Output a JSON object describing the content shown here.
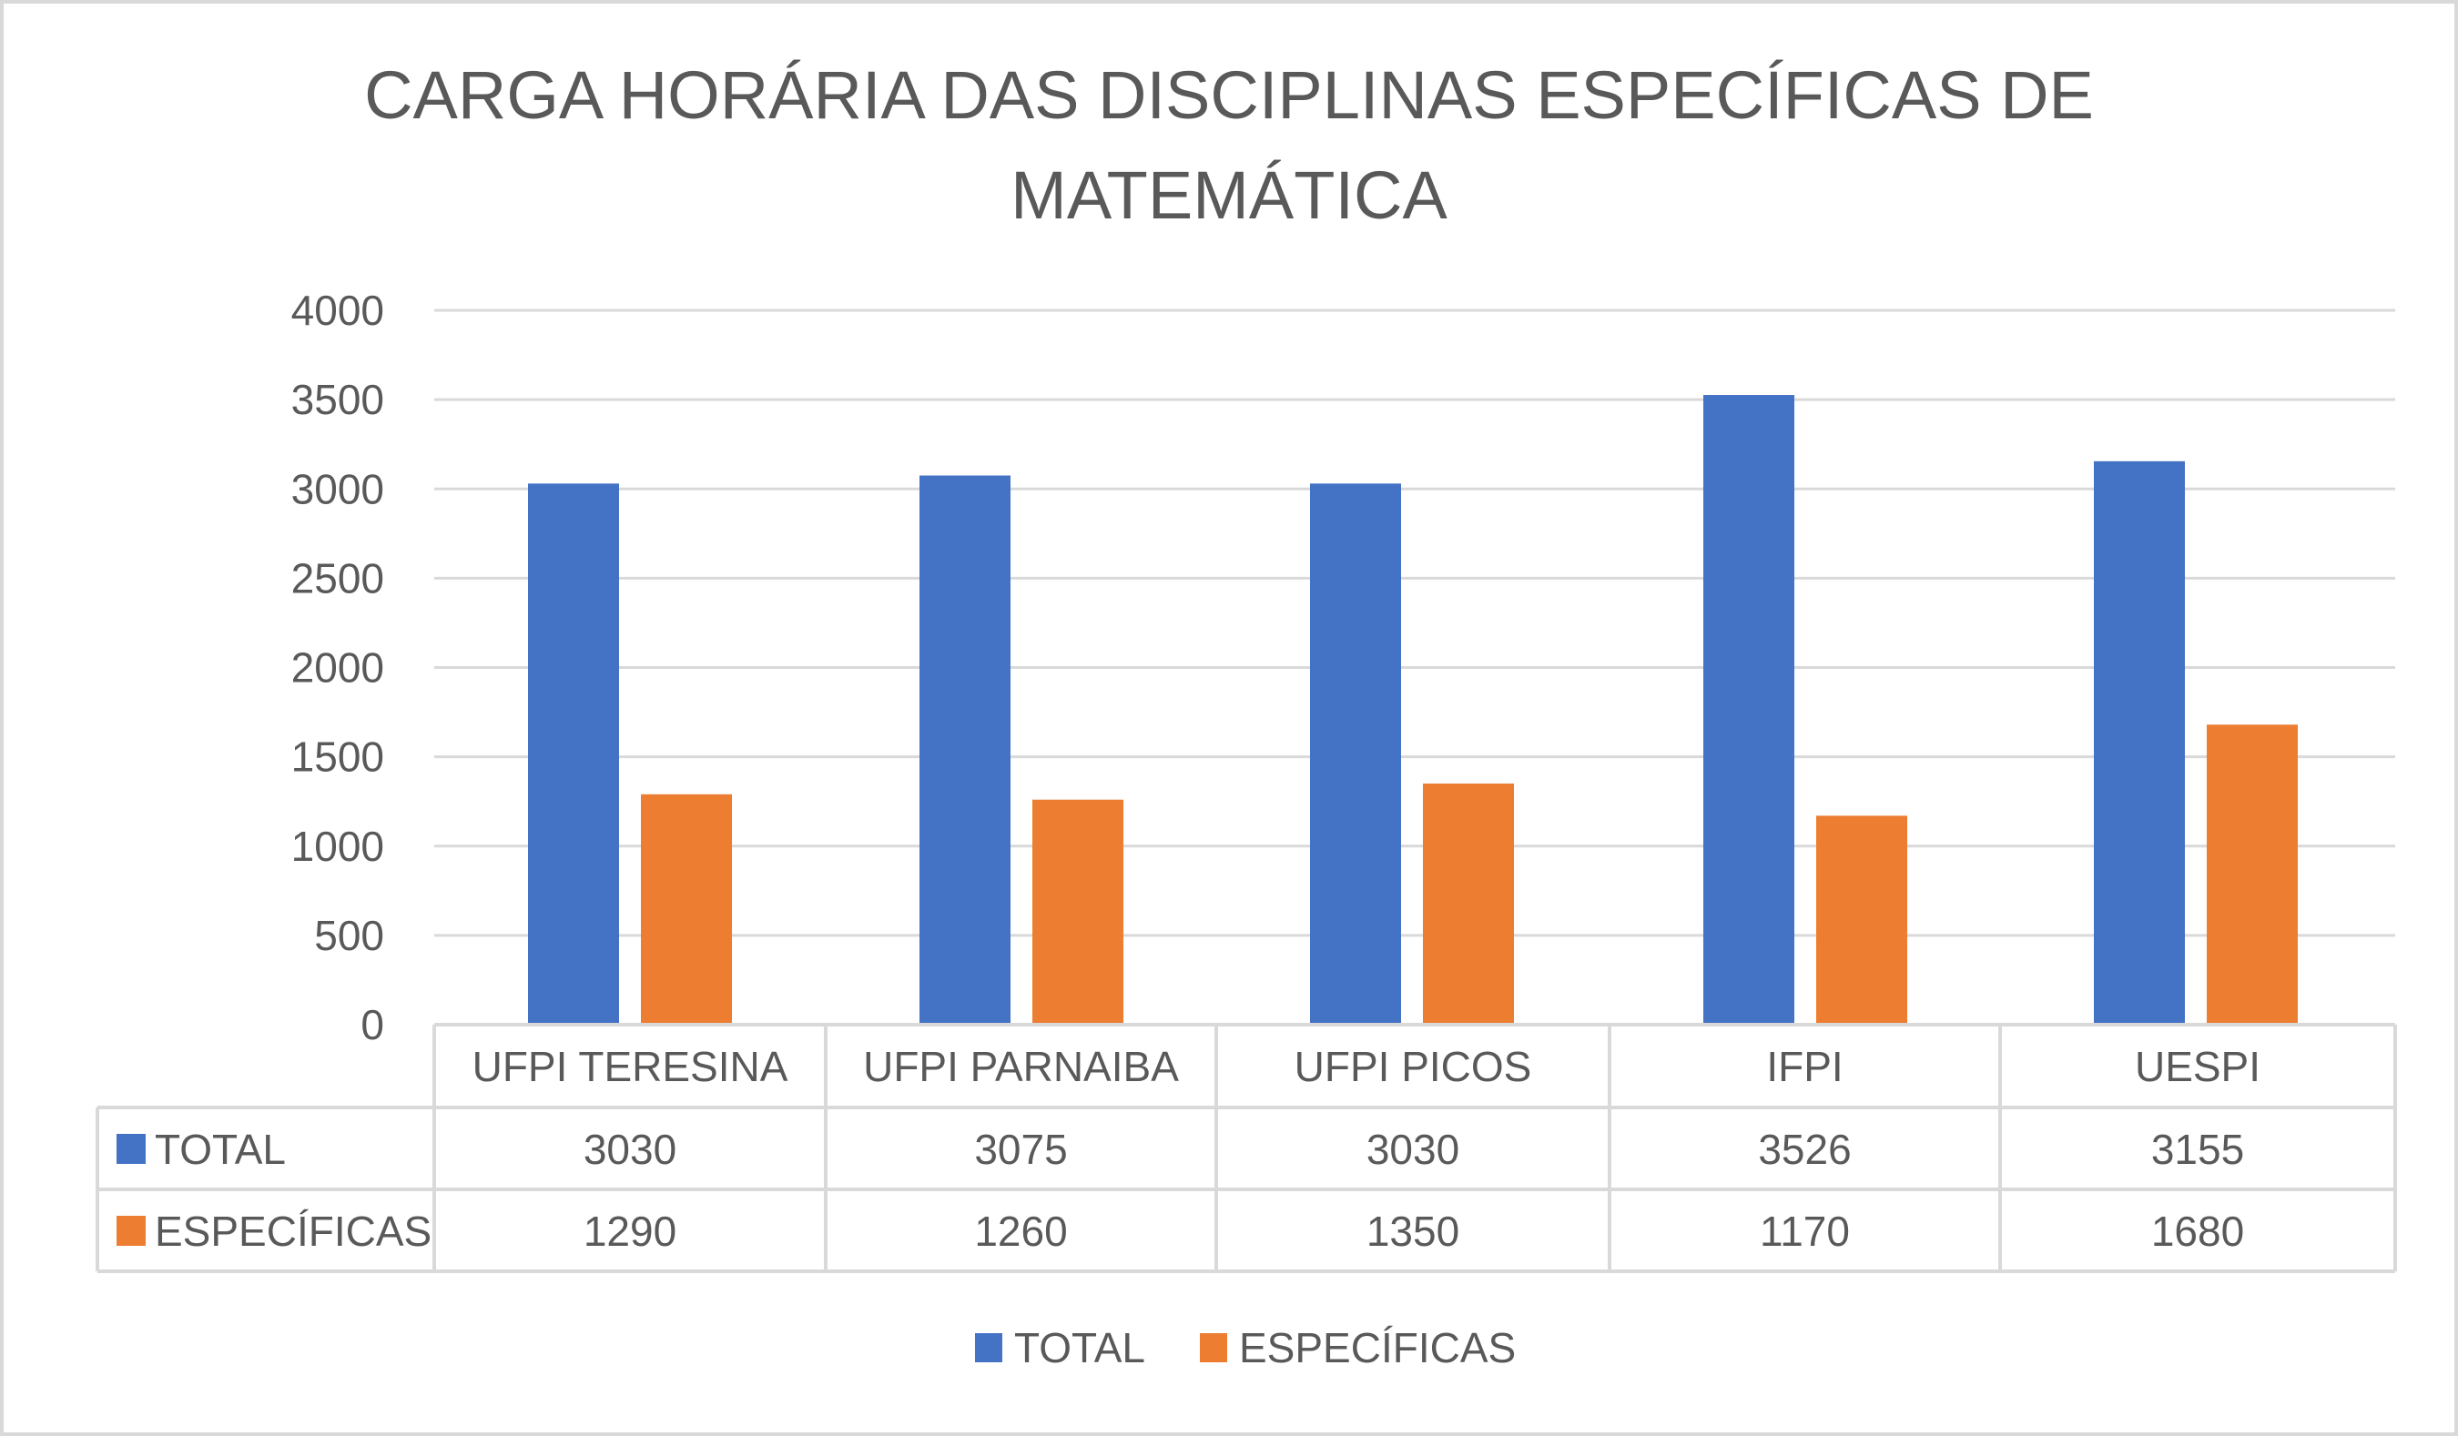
{
  "chart_data": {
    "type": "bar",
    "title_lines": [
      "CARGA HORÁRIA DAS DISCIPLINAS ESPECÍFICAS DE",
      "MATEMÁTICA"
    ],
    "categories": [
      "UFPI TERESINA",
      "UFPI PARNAIBA",
      "UFPI PICOS",
      "IFPI",
      "UESPI"
    ],
    "series": [
      {
        "name": "TOTAL",
        "color": "#4472C4",
        "values": [
          3030,
          3075,
          3030,
          3526,
          3155
        ]
      },
      {
        "name": "ESPECÍFICAS",
        "color": "#ED7D31",
        "values": [
          1290,
          1260,
          1350,
          1170,
          1680
        ]
      }
    ],
    "ylim": [
      0,
      4000
    ],
    "yticks": [
      "0",
      "500",
      "1000",
      "1500",
      "2000",
      "2500",
      "3000",
      "3500",
      "4000"
    ],
    "grid": true,
    "data_table": true,
    "legend_position": "bottom"
  }
}
